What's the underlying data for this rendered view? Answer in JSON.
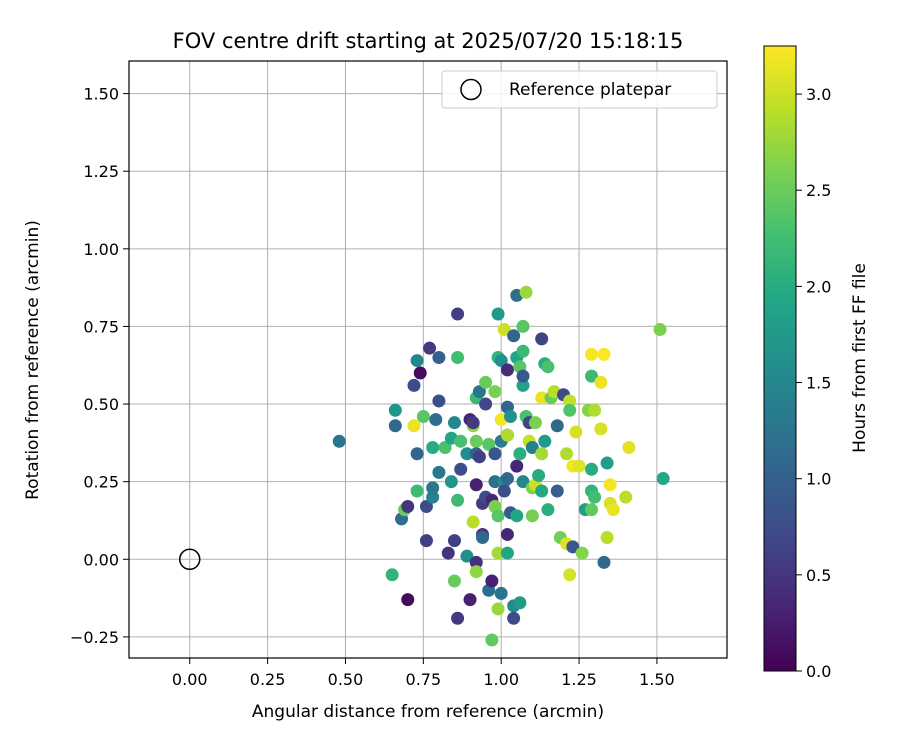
{
  "chart_data": {
    "type": "scatter",
    "title": "FOV centre drift starting at 2025/07/20 15:18:15",
    "xlabel": "Angular distance from reference (arcmin)",
    "ylabel": "Rotation from reference (arcmin)",
    "xlim": [
      -0.195,
      1.725
    ],
    "ylim": [
      -0.318,
      1.605
    ],
    "xticks": [
      "0.00",
      "0.25",
      "0.50",
      "0.75",
      "1.00",
      "1.25",
      "1.50"
    ],
    "xtick_values": [
      0,
      0.25,
      0.5,
      0.75,
      1.0,
      1.25,
      1.5
    ],
    "yticks": [
      "−0.25",
      "0.00",
      "0.25",
      "0.50",
      "0.75",
      "1.00",
      "1.25",
      "1.50"
    ],
    "ytick_values": [
      -0.25,
      0,
      0.25,
      0.5,
      0.75,
      1.0,
      1.25,
      1.5
    ],
    "grid": true,
    "legend": {
      "position": "top-right",
      "entries": [
        "Reference platepar"
      ]
    },
    "reference_point": {
      "label": "Reference platepar",
      "x": 0.0,
      "y": 0.0
    },
    "colorbar": {
      "label": "Hours from first FF file",
      "colormap": "viridis",
      "range": [
        0.0,
        3.25
      ],
      "ticks": [
        "0.0",
        "0.5",
        "1.0",
        "1.5",
        "2.0",
        "2.5",
        "3.0"
      ],
      "tick_values": [
        0.0,
        0.5,
        1.0,
        1.5,
        2.0,
        2.5,
        3.0
      ]
    },
    "points": [
      {
        "x": 0.48,
        "y": 0.38,
        "c": 1.25
      },
      {
        "x": 0.65,
        "y": -0.05,
        "c": 2.1
      },
      {
        "x": 0.66,
        "y": 0.48,
        "c": 1.7
      },
      {
        "x": 0.66,
        "y": 0.43,
        "c": 1.1
      },
      {
        "x": 0.68,
        "y": 0.13,
        "c": 1.15
      },
      {
        "x": 0.69,
        "y": 0.16,
        "c": 2.5
      },
      {
        "x": 0.7,
        "y": 0.17,
        "c": 0.5
      },
      {
        "x": 0.7,
        "y": -0.13,
        "c": 0.1
      },
      {
        "x": 0.72,
        "y": 0.56,
        "c": 0.75
      },
      {
        "x": 0.72,
        "y": 0.43,
        "c": 3.15
      },
      {
        "x": 0.73,
        "y": 0.34,
        "c": 1.05
      },
      {
        "x": 0.73,
        "y": 0.22,
        "c": 2.2
      },
      {
        "x": 0.73,
        "y": 0.64,
        "c": 1.5
      },
      {
        "x": 0.74,
        "y": 0.6,
        "c": 0.1
      },
      {
        "x": 0.75,
        "y": 0.46,
        "c": 2.4
      },
      {
        "x": 0.76,
        "y": 0.06,
        "c": 0.6
      },
      {
        "x": 0.76,
        "y": 0.17,
        "c": 0.75
      },
      {
        "x": 0.77,
        "y": 0.68,
        "c": 0.55
      },
      {
        "x": 0.78,
        "y": 0.36,
        "c": 2.0
      },
      {
        "x": 0.78,
        "y": 0.2,
        "c": 1.45
      },
      {
        "x": 0.78,
        "y": 0.23,
        "c": 1.3
      },
      {
        "x": 0.79,
        "y": 0.45,
        "c": 1.2
      },
      {
        "x": 0.8,
        "y": 0.65,
        "c": 1.0
      },
      {
        "x": 0.8,
        "y": 0.51,
        "c": 0.8
      },
      {
        "x": 0.8,
        "y": 0.28,
        "c": 1.3
      },
      {
        "x": 0.82,
        "y": 0.36,
        "c": 2.3
      },
      {
        "x": 0.83,
        "y": 0.02,
        "c": 0.5
      },
      {
        "x": 0.84,
        "y": 0.39,
        "c": 1.9
      },
      {
        "x": 0.84,
        "y": 0.25,
        "c": 1.7
      },
      {
        "x": 0.85,
        "y": 0.44,
        "c": 1.5
      },
      {
        "x": 0.85,
        "y": 0.06,
        "c": 0.6
      },
      {
        "x": 0.85,
        "y": -0.07,
        "c": 2.5
      },
      {
        "x": 0.86,
        "y": 0.79,
        "c": 0.6
      },
      {
        "x": 0.86,
        "y": 0.65,
        "c": 2.25
      },
      {
        "x": 0.86,
        "y": 0.19,
        "c": 2.2
      },
      {
        "x": 0.86,
        "y": -0.19,
        "c": 0.55
      },
      {
        "x": 0.87,
        "y": 0.38,
        "c": 2.3
      },
      {
        "x": 0.87,
        "y": 0.29,
        "c": 0.8
      },
      {
        "x": 0.89,
        "y": 0.34,
        "c": 1.6
      },
      {
        "x": 0.89,
        "y": 0.01,
        "c": 1.6
      },
      {
        "x": 0.9,
        "y": -0.13,
        "c": 0.3
      },
      {
        "x": 0.9,
        "y": 0.45,
        "c": 0.35
      },
      {
        "x": 0.91,
        "y": 0.43,
        "c": 2.7
      },
      {
        "x": 0.91,
        "y": 0.12,
        "c": 2.9
      },
      {
        "x": 0.91,
        "y": 0.44,
        "c": 0.55
      },
      {
        "x": 0.92,
        "y": 0.52,
        "c": 2.2
      },
      {
        "x": 0.92,
        "y": 0.38,
        "c": 2.5
      },
      {
        "x": 0.92,
        "y": 0.34,
        "c": 1.0
      },
      {
        "x": 0.92,
        "y": 0.24,
        "c": 0.3
      },
      {
        "x": 0.92,
        "y": -0.01,
        "c": 0.45
      },
      {
        "x": 0.92,
        "y": -0.04,
        "c": 2.7
      },
      {
        "x": 0.93,
        "y": 0.54,
        "c": 1.25
      },
      {
        "x": 0.93,
        "y": 0.33,
        "c": 0.6
      },
      {
        "x": 0.94,
        "y": 0.08,
        "c": 0.5
      },
      {
        "x": 0.94,
        "y": 0.07,
        "c": 1.1
      },
      {
        "x": 0.94,
        "y": 0.18,
        "c": 0.55
      },
      {
        "x": 0.95,
        "y": 0.57,
        "c": 2.5
      },
      {
        "x": 0.95,
        "y": 0.5,
        "c": 0.7
      },
      {
        "x": 0.95,
        "y": 0.2,
        "c": 0.75
      },
      {
        "x": 0.96,
        "y": 0.37,
        "c": 2.4
      },
      {
        "x": 0.96,
        "y": -0.1,
        "c": 1.2
      },
      {
        "x": 0.97,
        "y": -0.07,
        "c": 0.3
      },
      {
        "x": 0.97,
        "y": 0.19,
        "c": 0.35
      },
      {
        "x": 0.97,
        "y": -0.26,
        "c": 2.45
      },
      {
        "x": 0.98,
        "y": 0.54,
        "c": 2.6
      },
      {
        "x": 0.98,
        "y": 0.25,
        "c": 1.2
      },
      {
        "x": 0.98,
        "y": 0.17,
        "c": 2.6
      },
      {
        "x": 0.98,
        "y": 0.34,
        "c": 0.85
      },
      {
        "x": 0.99,
        "y": 0.79,
        "c": 1.75
      },
      {
        "x": 0.99,
        "y": 0.65,
        "c": 2.1
      },
      {
        "x": 0.99,
        "y": 0.14,
        "c": 2.4
      },
      {
        "x": 0.99,
        "y": 0.02,
        "c": 2.8
      },
      {
        "x": 0.99,
        "y": -0.16,
        "c": 2.75
      },
      {
        "x": 1.0,
        "y": 0.64,
        "c": 1.6
      },
      {
        "x": 1.0,
        "y": 0.45,
        "c": 3.2
      },
      {
        "x": 1.0,
        "y": 0.38,
        "c": 1.35
      },
      {
        "x": 1.0,
        "y": -0.11,
        "c": 1.25
      },
      {
        "x": 1.01,
        "y": 0.74,
        "c": 3.0
      },
      {
        "x": 1.01,
        "y": 0.25,
        "c": 1.6
      },
      {
        "x": 1.01,
        "y": 0.22,
        "c": 0.8
      },
      {
        "x": 1.02,
        "y": 0.61,
        "c": 0.4
      },
      {
        "x": 1.02,
        "y": 0.49,
        "c": 1.05
      },
      {
        "x": 1.02,
        "y": 0.4,
        "c": 0.25
      },
      {
        "x": 1.02,
        "y": 0.4,
        "c": 2.85
      },
      {
        "x": 1.02,
        "y": 0.26,
        "c": 1.1
      },
      {
        "x": 1.02,
        "y": 0.08,
        "c": 0.35
      },
      {
        "x": 1.02,
        "y": 0.02,
        "c": 1.9
      },
      {
        "x": 1.03,
        "y": 0.46,
        "c": 1.65
      },
      {
        "x": 1.03,
        "y": 0.15,
        "c": 0.9
      },
      {
        "x": 1.04,
        "y": -0.15,
        "c": 1.55
      },
      {
        "x": 1.04,
        "y": -0.19,
        "c": 0.75
      },
      {
        "x": 1.04,
        "y": 0.72,
        "c": 1.05
      },
      {
        "x": 1.05,
        "y": 0.65,
        "c": 1.9
      },
      {
        "x": 1.05,
        "y": 0.85,
        "c": 1.2
      },
      {
        "x": 1.05,
        "y": 0.3,
        "c": 0.35
      },
      {
        "x": 1.05,
        "y": 0.14,
        "c": 1.9
      },
      {
        "x": 1.06,
        "y": -0.14,
        "c": 1.75
      },
      {
        "x": 1.06,
        "y": 0.34,
        "c": 2.05
      },
      {
        "x": 1.06,
        "y": 0.62,
        "c": 2.4
      },
      {
        "x": 1.07,
        "y": 0.67,
        "c": 2.2
      },
      {
        "x": 1.07,
        "y": 0.75,
        "c": 2.4
      },
      {
        "x": 1.07,
        "y": 0.56,
        "c": 1.85
      },
      {
        "x": 1.07,
        "y": 0.59,
        "c": 0.9
      },
      {
        "x": 1.07,
        "y": 0.25,
        "c": 1.5
      },
      {
        "x": 1.08,
        "y": 0.86,
        "c": 2.75
      },
      {
        "x": 1.08,
        "y": 0.46,
        "c": 2.3
      },
      {
        "x": 1.09,
        "y": 0.44,
        "c": 0.65
      },
      {
        "x": 1.09,
        "y": 0.38,
        "c": 2.95
      },
      {
        "x": 1.1,
        "y": 0.36,
        "c": 1.4
      },
      {
        "x": 1.1,
        "y": 0.23,
        "c": 2.6
      },
      {
        "x": 1.1,
        "y": 0.14,
        "c": 2.55
      },
      {
        "x": 1.11,
        "y": 0.24,
        "c": 3.0
      },
      {
        "x": 1.11,
        "y": 0.44,
        "c": 2.6
      },
      {
        "x": 1.12,
        "y": 0.27,
        "c": 2.0
      },
      {
        "x": 1.13,
        "y": 0.71,
        "c": 0.65
      },
      {
        "x": 1.13,
        "y": 0.52,
        "c": 3.15
      },
      {
        "x": 1.13,
        "y": 0.34,
        "c": 2.8
      },
      {
        "x": 1.13,
        "y": 0.22,
        "c": 1.95
      },
      {
        "x": 1.14,
        "y": 0.63,
        "c": 2.0
      },
      {
        "x": 1.14,
        "y": 0.38,
        "c": 1.75
      },
      {
        "x": 1.15,
        "y": 0.62,
        "c": 2.3
      },
      {
        "x": 1.15,
        "y": 0.16,
        "c": 2.05
      },
      {
        "x": 1.16,
        "y": 0.52,
        "c": 2.5
      },
      {
        "x": 1.17,
        "y": 0.54,
        "c": 2.9
      },
      {
        "x": 1.18,
        "y": 0.43,
        "c": 1.1
      },
      {
        "x": 1.18,
        "y": 0.22,
        "c": 1.0
      },
      {
        "x": 1.19,
        "y": 0.07,
        "c": 2.55
      },
      {
        "x": 1.2,
        "y": 0.53,
        "c": 0.75
      },
      {
        "x": 1.21,
        "y": 0.34,
        "c": 2.85
      },
      {
        "x": 1.21,
        "y": 0.05,
        "c": 3.1
      },
      {
        "x": 1.22,
        "y": 0.51,
        "c": 2.95
      },
      {
        "x": 1.22,
        "y": 0.48,
        "c": 2.35
      },
      {
        "x": 1.22,
        "y": -0.05,
        "c": 3.05
      },
      {
        "x": 1.23,
        "y": 0.04,
        "c": 0.9
      },
      {
        "x": 1.23,
        "y": 0.3,
        "c": 3.2
      },
      {
        "x": 1.24,
        "y": 0.41,
        "c": 3.05
      },
      {
        "x": 1.25,
        "y": 0.3,
        "c": 3.1
      },
      {
        "x": 1.26,
        "y": 0.02,
        "c": 2.65
      },
      {
        "x": 1.27,
        "y": 0.16,
        "c": 1.8
      },
      {
        "x": 1.28,
        "y": 0.48,
        "c": 2.65
      },
      {
        "x": 1.29,
        "y": 0.66,
        "c": 3.2
      },
      {
        "x": 1.29,
        "y": 0.59,
        "c": 2.2
      },
      {
        "x": 1.29,
        "y": 0.16,
        "c": 2.45
      },
      {
        "x": 1.29,
        "y": 0.22,
        "c": 2.1
      },
      {
        "x": 1.29,
        "y": 0.29,
        "c": 2.0
      },
      {
        "x": 1.3,
        "y": 0.48,
        "c": 2.85
      },
      {
        "x": 1.3,
        "y": 0.2,
        "c": 2.25
      },
      {
        "x": 1.32,
        "y": 0.42,
        "c": 3.05
      },
      {
        "x": 1.32,
        "y": 0.57,
        "c": 3.15
      },
      {
        "x": 1.33,
        "y": 0.66,
        "c": 3.25
      },
      {
        "x": 1.33,
        "y": -0.01,
        "c": 1.1
      },
      {
        "x": 1.34,
        "y": 0.31,
        "c": 1.8
      },
      {
        "x": 1.34,
        "y": 0.07,
        "c": 2.9
      },
      {
        "x": 1.35,
        "y": 0.18,
        "c": 3.05
      },
      {
        "x": 1.35,
        "y": 0.24,
        "c": 3.2
      },
      {
        "x": 1.36,
        "y": 0.16,
        "c": 3.15
      },
      {
        "x": 1.4,
        "y": 0.2,
        "c": 2.9
      },
      {
        "x": 1.41,
        "y": 0.36,
        "c": 3.1
      },
      {
        "x": 1.51,
        "y": 0.74,
        "c": 2.6
      },
      {
        "x": 1.52,
        "y": 0.26,
        "c": 1.95
      }
    ]
  }
}
